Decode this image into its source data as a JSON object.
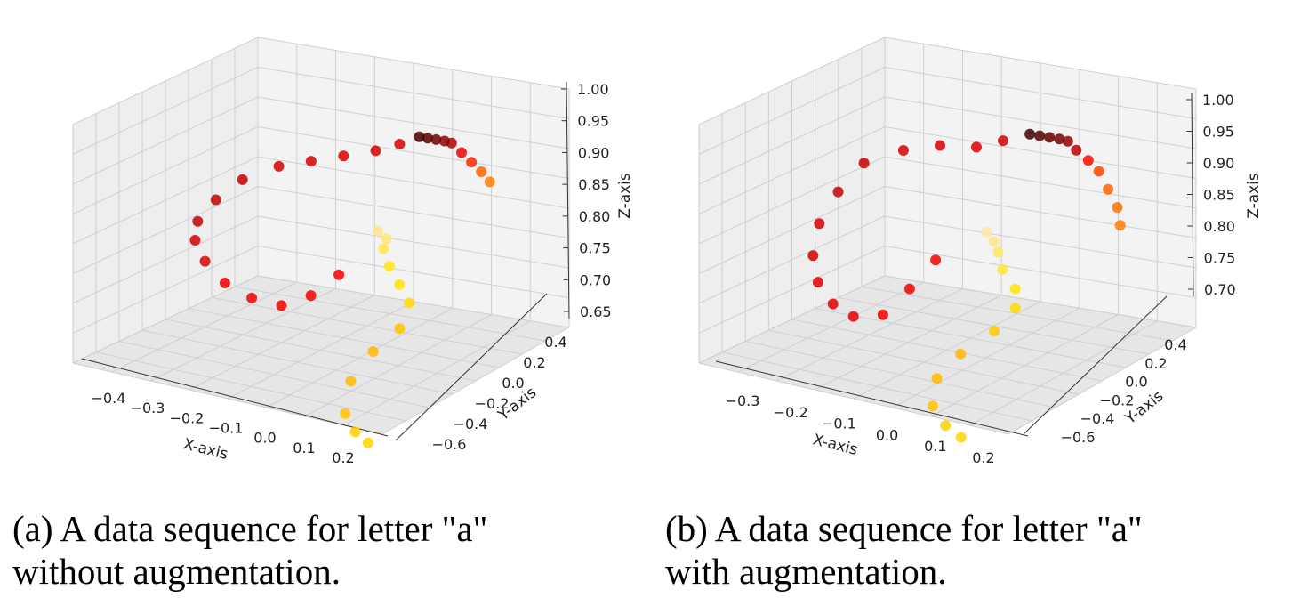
{
  "chart_data": [
    {
      "type": "scatter",
      "projection": "3d",
      "grid": true,
      "colormap": "hot (dark red -> red -> orange -> yellow -> white)",
      "xlabel": "X-axis",
      "ylabel": "Y-axis",
      "zlabel": "Z-axis",
      "xticks": [
        "−0.4",
        "−0.3",
        "−0.2",
        "−0.1",
        "0.0",
        "0.1",
        "0.2"
      ],
      "yticks": [
        "−0.6",
        "−0.4",
        "−0.2",
        "0.0",
        "0.2",
        "0.4"
      ],
      "zticks": [
        "0.65",
        "0.70",
        "0.75",
        "0.80",
        "0.85",
        "0.90",
        "0.95",
        "1.00"
      ],
      "xlim": [
        -0.45,
        0.25
      ],
      "ylim": [
        -0.7,
        0.5
      ],
      "zlim": [
        0.65,
        1.0
      ],
      "points": [
        {
          "x": -0.05,
          "y": 0.45,
          "z": 1.0,
          "c": 0.05
        },
        {
          "x": -0.03,
          "y": 0.45,
          "z": 1.0,
          "c": 0.08
        },
        {
          "x": -0.01,
          "y": 0.45,
          "z": 1.0,
          "c": 0.12
        },
        {
          "x": 0.01,
          "y": 0.45,
          "z": 1.0,
          "c": 0.18
        },
        {
          "x": 0.03,
          "y": 0.44,
          "z": 1.0,
          "c": 0.25
        },
        {
          "x": 0.06,
          "y": 0.42,
          "z": 0.99,
          "c": 0.35
        },
        {
          "x": 0.09,
          "y": 0.4,
          "z": 0.98,
          "c": 0.45
        },
        {
          "x": 0.12,
          "y": 0.38,
          "z": 0.97,
          "c": 0.55
        },
        {
          "x": 0.15,
          "y": 0.35,
          "z": 0.96,
          "c": 0.6
        },
        {
          "x": -0.08,
          "y": 0.4,
          "z": 0.99,
          "c": 0.3
        },
        {
          "x": -0.12,
          "y": 0.35,
          "z": 0.98,
          "c": 0.3
        },
        {
          "x": -0.18,
          "y": 0.3,
          "z": 0.97,
          "c": 0.32
        },
        {
          "x": -0.24,
          "y": 0.25,
          "z": 0.96,
          "c": 0.3
        },
        {
          "x": -0.3,
          "y": 0.2,
          "z": 0.95,
          "c": 0.3
        },
        {
          "x": -0.36,
          "y": 0.12,
          "z": 0.93,
          "c": 0.28
        },
        {
          "x": -0.4,
          "y": 0.05,
          "z": 0.9,
          "c": 0.28
        },
        {
          "x": -0.42,
          "y": -0.02,
          "z": 0.87,
          "c": 0.28
        },
        {
          "x": -0.4,
          "y": -0.1,
          "z": 0.85,
          "c": 0.3
        },
        {
          "x": -0.35,
          "y": -0.18,
          "z": 0.83,
          "c": 0.32
        },
        {
          "x": -0.28,
          "y": -0.25,
          "z": 0.81,
          "c": 0.34
        },
        {
          "x": -0.2,
          "y": -0.3,
          "z": 0.8,
          "c": 0.35
        },
        {
          "x": -0.12,
          "y": -0.33,
          "z": 0.8,
          "c": 0.36
        },
        {
          "x": -0.06,
          "y": -0.3,
          "z": 0.82,
          "c": 0.37
        },
        {
          "x": -0.02,
          "y": -0.22,
          "z": 0.85,
          "c": 0.38
        },
        {
          "x": 0.0,
          "y": 0.0,
          "z": 0.9,
          "c": 0.9
        },
        {
          "x": 0.02,
          "y": 0.0,
          "z": 0.89,
          "c": 0.88
        },
        {
          "x": 0.03,
          "y": -0.05,
          "z": 0.88,
          "c": 0.85
        },
        {
          "x": 0.06,
          "y": -0.1,
          "z": 0.86,
          "c": 0.8
        },
        {
          "x": 0.1,
          "y": -0.15,
          "z": 0.84,
          "c": 0.78
        },
        {
          "x": 0.14,
          "y": -0.2,
          "z": 0.82,
          "c": 0.76
        },
        {
          "x": 0.15,
          "y": -0.3,
          "z": 0.79,
          "c": 0.72
        },
        {
          "x": 0.12,
          "y": -0.4,
          "z": 0.76,
          "c": 0.7
        },
        {
          "x": 0.1,
          "y": -0.5,
          "z": 0.72,
          "c": 0.7
        },
        {
          "x": 0.12,
          "y": -0.6,
          "z": 0.68,
          "c": 0.72
        },
        {
          "x": 0.16,
          "y": -0.65,
          "z": 0.66,
          "c": 0.74
        },
        {
          "x": 0.2,
          "y": -0.68,
          "z": 0.65,
          "c": 0.75
        }
      ]
    },
    {
      "type": "scatter",
      "projection": "3d",
      "grid": true,
      "colormap": "hot (dark red -> red -> orange -> yellow -> white)",
      "xlabel": "X-axis",
      "ylabel": "Y-axis",
      "zlabel": "Z-axis",
      "xticks": [
        "−0.3",
        "−0.2",
        "−0.1",
        "0.0",
        "0.1",
        "0.2"
      ],
      "yticks": [
        "−0.6",
        "−0.4",
        "−0.2",
        "0.0",
        "0.2",
        "0.4"
      ],
      "zticks": [
        "0.70",
        "0.75",
        "0.80",
        "0.85",
        "0.90",
        "0.95",
        "1.00"
      ],
      "xlim": [
        -0.35,
        0.25
      ],
      "ylim": [
        -0.7,
        0.5
      ],
      "zlim": [
        0.67,
        1.0
      ],
      "points": [
        {
          "x": -0.04,
          "y": 0.45,
          "z": 1.0,
          "c": 0.04
        },
        {
          "x": -0.02,
          "y": 0.45,
          "z": 1.0,
          "c": 0.07
        },
        {
          "x": 0.0,
          "y": 0.45,
          "z": 1.0,
          "c": 0.1
        },
        {
          "x": 0.02,
          "y": 0.45,
          "z": 1.0,
          "c": 0.14
        },
        {
          "x": 0.04,
          "y": 0.44,
          "z": 1.0,
          "c": 0.2
        },
        {
          "x": 0.06,
          "y": 0.43,
          "z": 0.99,
          "c": 0.26
        },
        {
          "x": 0.09,
          "y": 0.41,
          "z": 0.98,
          "c": 0.4
        },
        {
          "x": 0.12,
          "y": 0.38,
          "z": 0.97,
          "c": 0.5
        },
        {
          "x": 0.15,
          "y": 0.34,
          "z": 0.95,
          "c": 0.55
        },
        {
          "x": 0.18,
          "y": 0.3,
          "z": 0.93,
          "c": 0.58
        },
        {
          "x": 0.2,
          "y": 0.25,
          "z": 0.91,
          "c": 0.6
        },
        {
          "x": -0.08,
          "y": 0.4,
          "z": 0.99,
          "c": 0.3
        },
        {
          "x": -0.12,
          "y": 0.35,
          "z": 0.98,
          "c": 0.32
        },
        {
          "x": -0.18,
          "y": 0.3,
          "z": 0.98,
          "c": 0.3
        },
        {
          "x": -0.24,
          "y": 0.25,
          "z": 0.97,
          "c": 0.3
        },
        {
          "x": -0.3,
          "y": 0.18,
          "z": 0.95,
          "c": 0.28
        },
        {
          "x": -0.33,
          "y": 0.1,
          "z": 0.91,
          "c": 0.28
        },
        {
          "x": -0.34,
          "y": 0.0,
          "z": 0.87,
          "c": 0.3
        },
        {
          "x": -0.33,
          "y": -0.08,
          "z": 0.83,
          "c": 0.3
        },
        {
          "x": -0.3,
          "y": -0.15,
          "z": 0.8,
          "c": 0.32
        },
        {
          "x": -0.25,
          "y": -0.22,
          "z": 0.78,
          "c": 0.33
        },
        {
          "x": -0.2,
          "y": -0.25,
          "z": 0.77,
          "c": 0.34
        },
        {
          "x": -0.14,
          "y": -0.25,
          "z": 0.78,
          "c": 0.35
        },
        {
          "x": -0.1,
          "y": -0.2,
          "z": 0.82,
          "c": 0.36
        },
        {
          "x": -0.07,
          "y": -0.12,
          "z": 0.86,
          "c": 0.37
        },
        {
          "x": 0.0,
          "y": 0.0,
          "z": 0.9,
          "c": 0.92
        },
        {
          "x": 0.02,
          "y": -0.02,
          "z": 0.89,
          "c": 0.9
        },
        {
          "x": 0.04,
          "y": -0.06,
          "z": 0.88,
          "c": 0.86
        },
        {
          "x": 0.06,
          "y": -0.1,
          "z": 0.86,
          "c": 0.82
        },
        {
          "x": 0.1,
          "y": -0.15,
          "z": 0.84,
          "c": 0.78
        },
        {
          "x": 0.12,
          "y": -0.22,
          "z": 0.82,
          "c": 0.76
        },
        {
          "x": 0.1,
          "y": -0.3,
          "z": 0.79,
          "c": 0.73
        },
        {
          "x": 0.06,
          "y": -0.4,
          "z": 0.76,
          "c": 0.7
        },
        {
          "x": 0.04,
          "y": -0.5,
          "z": 0.73,
          "c": 0.7
        },
        {
          "x": 0.06,
          "y": -0.6,
          "z": 0.7,
          "c": 0.72
        },
        {
          "x": 0.1,
          "y": -0.65,
          "z": 0.68,
          "c": 0.74
        },
        {
          "x": 0.14,
          "y": -0.68,
          "z": 0.67,
          "c": 0.75
        }
      ]
    }
  ],
  "captions": {
    "a": "(a) A data sequence for letter \"a\"\nwithout augmentation.",
    "b": "(b) A data sequence for letter \"a\"\nwith augmentation."
  }
}
